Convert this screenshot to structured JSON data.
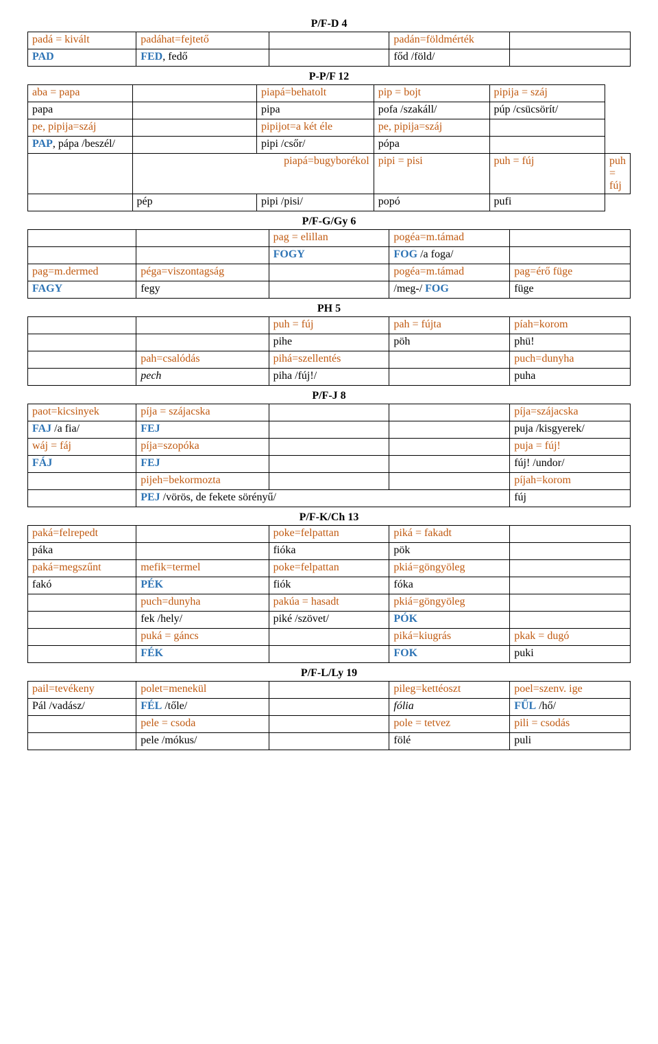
{
  "layout": {
    "colwidths5": [
      "18%",
      "22%",
      "20%",
      "20%",
      "20%"
    ]
  },
  "sections": [
    {
      "title": "P/F-D  4",
      "rows": [
        [
          {
            "runs": [
              {
                "t": "padá = kivált",
                "c": "or"
              }
            ]
          },
          {
            "runs": [
              {
                "t": "padáhat=fejtető",
                "c": "or"
              }
            ]
          },
          {},
          {
            "runs": [
              {
                "t": "padán=földmérték",
                "c": "or"
              }
            ]
          },
          {}
        ],
        [
          {
            "runs": [
              {
                "t": "PAD",
                "c": "bl",
                "b": true
              }
            ]
          },
          {
            "runs": [
              {
                "t": "FED",
                "c": "bl",
                "b": true
              },
              {
                "t": ", fedő"
              }
            ]
          },
          {},
          {
            "runs": [
              {
                "t": "főd /föld/"
              }
            ]
          },
          {}
        ]
      ]
    },
    {
      "title": "P-P/F  12",
      "rows": [
        [
          {
            "runs": [
              {
                "t": "aba = papa",
                "c": "or"
              }
            ]
          },
          {},
          {
            "runs": [
              {
                "t": "piapá=behatolt",
                "c": "or"
              }
            ]
          },
          {
            "runs": [
              {
                "t": "pip = bojt",
                "c": "or"
              }
            ]
          },
          {
            "runs": [
              {
                "t": "pipija = száj",
                "c": "or"
              }
            ]
          }
        ],
        [
          {
            "runs": [
              {
                "t": "papa"
              }
            ]
          },
          {},
          {
            "runs": [
              {
                "t": "pipa"
              }
            ]
          },
          {
            "runs": [
              {
                "t": "pofa /szakáll/"
              }
            ]
          },
          {
            "runs": [
              {
                "t": "púp /csücsörít/"
              }
            ]
          }
        ],
        [
          {
            "runs": [
              {
                "t": "pe, pipija=száj",
                "c": "or"
              }
            ]
          },
          {},
          {
            "runs": [
              {
                "t": "pipijot=a két éle",
                "c": "or"
              }
            ]
          },
          {
            "runs": [
              {
                "t": "pe, pipija=száj",
                "c": "or"
              }
            ]
          },
          {}
        ],
        [
          {
            "runs": [
              {
                "t": "PAP",
                "c": "bl",
                "b": true
              },
              {
                "t": ", pápa /beszél/"
              }
            ]
          },
          {},
          {
            "runs": [
              {
                "t": "pipi /csőr/"
              }
            ]
          },
          {
            "runs": [
              {
                "t": "pópa"
              }
            ]
          },
          {}
        ],
        [
          {},
          {
            "span": 2,
            "align": "right",
            "runs": [
              {
                "t": "piapá=bugyborékol",
                "c": "or"
              }
            ]
          },
          {
            "runs": [
              {
                "t": "pipi = pisi",
                "c": "or"
              }
            ]
          },
          {
            "runs": [
              {
                "t": "puh = fúj",
                "c": "or"
              }
            ]
          },
          {
            "runs": [
              {
                "t": "puh = fúj",
                "c": "or"
              }
            ]
          }
        ],
        [
          {},
          {
            "runs": [
              {
                "t": "pép"
              }
            ]
          },
          {
            "runs": [
              {
                "t": "pipi /pisi/"
              }
            ]
          },
          {
            "runs": [
              {
                "t": "popó"
              }
            ]
          },
          {
            "runs": [
              {
                "t": "pufi"
              }
            ]
          }
        ]
      ]
    },
    {
      "title": "P/F-G/Gy  6",
      "rows": [
        [
          {},
          {},
          {
            "runs": [
              {
                "t": "pag = elillan",
                "c": "or"
              }
            ]
          },
          {
            "runs": [
              {
                "t": "pogéa=m.támad",
                "c": "or"
              }
            ]
          },
          {}
        ],
        [
          {},
          {},
          {
            "runs": [
              {
                "t": "FOGY",
                "c": "bl",
                "b": true
              }
            ]
          },
          {
            "runs": [
              {
                "t": "FOG",
                "c": "bl",
                "b": true
              },
              {
                "t": " /a foga/"
              }
            ]
          },
          {}
        ],
        [
          {
            "runs": [
              {
                "t": "pag=m.dermed",
                "c": "or"
              }
            ]
          },
          {
            "runs": [
              {
                "t": "péga=viszontagság",
                "c": "or"
              }
            ]
          },
          {},
          {
            "runs": [
              {
                "t": "pogéa=m.támad",
                "c": "or"
              }
            ]
          },
          {
            "runs": [
              {
                "t": "pag=érő füge",
                "c": "or"
              }
            ]
          }
        ],
        [
          {
            "runs": [
              {
                "t": "FAGY",
                "c": "bl",
                "b": true
              }
            ]
          },
          {
            "runs": [
              {
                "t": "fegy"
              }
            ]
          },
          {},
          {
            "runs": [
              {
                "t": "/meg-/ "
              },
              {
                "t": "FOG",
                "c": "bl",
                "b": true
              }
            ]
          },
          {
            "runs": [
              {
                "t": "füge"
              }
            ]
          }
        ]
      ]
    },
    {
      "title": "PH  5",
      "rows": [
        [
          {},
          {},
          {
            "runs": [
              {
                "t": "puh = fúj",
                "c": "or"
              }
            ]
          },
          {
            "runs": [
              {
                "t": "pah = fújta",
                "c": "or"
              }
            ]
          },
          {
            "runs": [
              {
                "t": "píah=korom",
                "c": "or"
              }
            ]
          }
        ],
        [
          {},
          {},
          {
            "runs": [
              {
                "t": "pihe"
              }
            ]
          },
          {
            "runs": [
              {
                "t": "pöh"
              }
            ]
          },
          {
            "runs": [
              {
                "t": "phü!"
              }
            ]
          }
        ],
        [
          {},
          {
            "runs": [
              {
                "t": "pah=csalódás",
                "c": "or"
              }
            ]
          },
          {
            "runs": [
              {
                "t": "pihá=szellentés",
                "c": "or"
              }
            ]
          },
          {},
          {
            "runs": [
              {
                "t": "puch=dunyha",
                "c": "or"
              }
            ]
          }
        ],
        [
          {},
          {
            "runs": [
              {
                "t": "pech",
                "i": true
              }
            ]
          },
          {
            "runs": [
              {
                "t": "piha /fúj!/"
              }
            ]
          },
          {},
          {
            "runs": [
              {
                "t": "puha"
              }
            ]
          }
        ]
      ]
    },
    {
      "title": "P/F-J  8",
      "rows": [
        [
          {
            "runs": [
              {
                "t": "paot=kicsinyek",
                "c": "or"
              }
            ]
          },
          {
            "runs": [
              {
                "t": "píja = szájacska",
                "c": "or"
              }
            ]
          },
          {},
          {},
          {
            "runs": [
              {
                "t": "píja=szájacska",
                "c": "or"
              }
            ]
          }
        ],
        [
          {
            "runs": [
              {
                "t": "FAJ",
                "c": "bl",
                "b": true
              },
              {
                "t": " /a fia/"
              }
            ]
          },
          {
            "runs": [
              {
                "t": "FEJ",
                "c": "bl",
                "b": true
              }
            ]
          },
          {},
          {},
          {
            "runs": [
              {
                "t": "puja /kisgyerek/"
              }
            ]
          }
        ],
        [
          {
            "runs": [
              {
                "t": "wáj = fáj",
                "c": "or"
              }
            ]
          },
          {
            "runs": [
              {
                "t": "píja=szopóka",
                "c": "or"
              }
            ]
          },
          {},
          {},
          {
            "runs": [
              {
                "t": "puja = fúj!",
                "c": "or"
              }
            ]
          }
        ],
        [
          {
            "runs": [
              {
                "t": "FÁJ",
                "c": "bl",
                "b": true
              }
            ]
          },
          {
            "runs": [
              {
                "t": "FEJ",
                "c": "bl",
                "b": true
              }
            ]
          },
          {},
          {},
          {
            "runs": [
              {
                "t": "fúj! /undor/"
              }
            ]
          }
        ],
        [
          {},
          {
            "runs": [
              {
                "t": "pijeh=bekormozta",
                "c": "or"
              }
            ]
          },
          {},
          {},
          {
            "runs": [
              {
                "t": "píjah=korom",
                "c": "or"
              }
            ]
          }
        ],
        [
          {},
          {
            "span": 3,
            "runs": [
              {
                "t": "PEJ",
                "c": "bl",
                "b": true
              },
              {
                "t": " /vörös, de fekete sörényű/"
              }
            ]
          },
          {
            "runs": [
              {
                "t": "fúj"
              }
            ]
          }
        ]
      ]
    },
    {
      "title": "P/F-K/Ch  13",
      "rows": [
        [
          {
            "runs": [
              {
                "t": "paká=felrepedt",
                "c": "or"
              }
            ]
          },
          {},
          {
            "runs": [
              {
                "t": "poke=felpattan",
                "c": "or"
              }
            ]
          },
          {
            "runs": [
              {
                "t": "piká = fakadt",
                "c": "or"
              }
            ]
          },
          {}
        ],
        [
          {
            "runs": [
              {
                "t": "páka"
              }
            ]
          },
          {},
          {
            "runs": [
              {
                "t": "fióka"
              }
            ]
          },
          {
            "runs": [
              {
                "t": "pök"
              }
            ]
          },
          {}
        ],
        [
          {
            "runs": [
              {
                "t": "paká=megszűnt",
                "c": "or"
              }
            ]
          },
          {
            "runs": [
              {
                "t": "me",
                "c": "or"
              },
              {
                "t": "fik=termel",
                "c": "or"
              }
            ]
          },
          {
            "runs": [
              {
                "t": "poke=felpattan",
                "c": "or"
              }
            ]
          },
          {
            "runs": [
              {
                "t": "pkiá=göngyöleg",
                "c": "or"
              }
            ]
          },
          {}
        ],
        [
          {
            "runs": [
              {
                "t": "fakó"
              }
            ]
          },
          {
            "runs": [
              {
                "t": "PÉK",
                "c": "bl",
                "b": true
              }
            ]
          },
          {
            "runs": [
              {
                "t": "fiók"
              }
            ]
          },
          {
            "runs": [
              {
                "t": "fóka"
              }
            ]
          },
          {}
        ],
        [
          {},
          {
            "runs": [
              {
                "t": "puch=dunyha",
                "c": "or"
              }
            ]
          },
          {
            "runs": [
              {
                "t": "pakúa = hasadt",
                "c": "or"
              }
            ]
          },
          {
            "runs": [
              {
                "t": "pkiá=göngyöleg",
                "c": "or"
              }
            ]
          },
          {}
        ],
        [
          {},
          {
            "runs": [
              {
                "t": "fek /hely/"
              }
            ]
          },
          {
            "runs": [
              {
                "t": "piké /szövet/"
              }
            ]
          },
          {
            "runs": [
              {
                "t": "PÓK",
                "c": "bl",
                "b": true
              }
            ]
          },
          {}
        ],
        [
          {},
          {
            "runs": [
              {
                "t": "puká = gáncs",
                "c": "or"
              }
            ]
          },
          {},
          {
            "runs": [
              {
                "t": "piká=kiugrás",
                "c": "or"
              }
            ]
          },
          {
            "runs": [
              {
                "t": "pkak = dugó",
                "c": "or"
              }
            ]
          }
        ],
        [
          {},
          {
            "runs": [
              {
                "t": "FÉK",
                "c": "bl",
                "b": true
              }
            ]
          },
          {},
          {
            "runs": [
              {
                "t": "FOK",
                "c": "bl",
                "b": true
              }
            ]
          },
          {
            "runs": [
              {
                "t": "puki"
              }
            ]
          }
        ]
      ]
    },
    {
      "title": "P/F-L/Ly  19",
      "rows": [
        [
          {
            "runs": [
              {
                "t": "pail=tevékeny",
                "c": "or"
              }
            ]
          },
          {
            "runs": [
              {
                "t": "polet=menekül",
                "c": "or"
              }
            ]
          },
          {},
          {
            "runs": [
              {
                "t": "pileg=kettéoszt",
                "c": "or"
              }
            ]
          },
          {
            "runs": [
              {
                "t": "poel=szenv. ige",
                "c": "or"
              }
            ]
          }
        ],
        [
          {
            "runs": [
              {
                "t": "Pál /vadász/"
              }
            ]
          },
          {
            "runs": [
              {
                "t": "FÉL",
                "c": "bl",
                "b": true
              },
              {
                "t": " /tőle/"
              }
            ]
          },
          {},
          {
            "runs": [
              {
                "t": "fólia",
                "i": true
              }
            ]
          },
          {
            "runs": [
              {
                "t": "FŰL",
                "c": "bl",
                "b": true
              },
              {
                "t": " /hő/"
              }
            ]
          }
        ],
        [
          {},
          {
            "runs": [
              {
                "t": "pele = csoda",
                "c": "or"
              }
            ]
          },
          {},
          {
            "runs": [
              {
                "t": "pole = tetvez",
                "c": "or"
              }
            ]
          },
          {
            "runs": [
              {
                "t": "pili = csodás",
                "c": "or"
              }
            ]
          }
        ],
        [
          {},
          {
            "runs": [
              {
                "t": "pele /mókus/"
              }
            ]
          },
          {},
          {
            "runs": [
              {
                "t": "fölé"
              }
            ]
          },
          {
            "runs": [
              {
                "t": "puli"
              }
            ]
          }
        ]
      ]
    }
  ]
}
